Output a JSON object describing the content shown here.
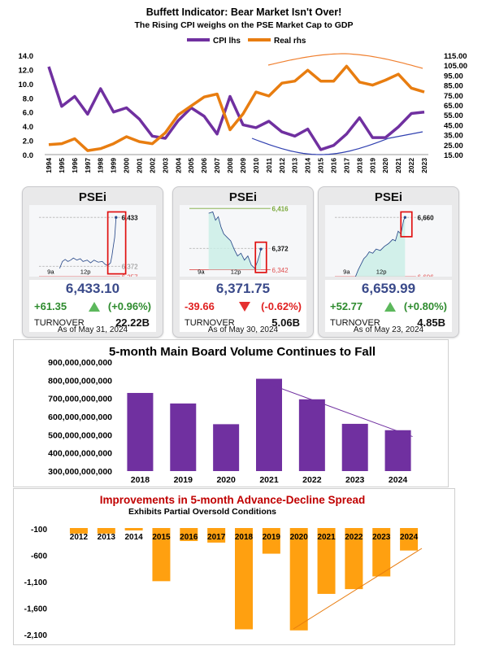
{
  "chart1": {
    "title": "Buffett Indicator: Bear Market Isn't Over!",
    "subtitle": "The Rising CPI weighs on the PSE Market Cap to GDP",
    "legend": [
      "CPI lhs",
      "Real rhs"
    ],
    "left_ticks": [
      "0.0",
      "2.0",
      "4.0",
      "6.0",
      "8.0",
      "10.0",
      "12.0",
      "14.0"
    ],
    "right_ticks": [
      "15.00",
      "25.00",
      "35.00",
      "45.00",
      "55.00",
      "65.00",
      "75.00",
      "85.00",
      "95.00",
      "105.00",
      "115.00"
    ]
  },
  "cards": [
    {
      "title": "PSEi",
      "hi": "6,433",
      "mid": "6,372",
      "lo": "6,357",
      "x1": "9a",
      "x2": "12p",
      "price": "6,433.10",
      "chg": "+61.35",
      "pct": "(+0.96%)",
      "dir": "up",
      "turn_label": "TURNOVER",
      "turn": "22.22B",
      "asof": "As of May 31, 2024"
    },
    {
      "title": "PSEi",
      "hi": "6,416",
      "mid": "6,372",
      "lo": "6,342",
      "x1": "9a",
      "x2": "12p",
      "price": "6,371.75",
      "chg": "-39.66",
      "pct": "(-0.62%)",
      "dir": "down",
      "turn_label": "TURNOVER",
      "turn": "5.06B",
      "asof": "As of May 30, 2024"
    },
    {
      "title": "PSEi",
      "hi": "6,660",
      "mid": "",
      "lo": "6,606",
      "x1": "9a",
      "x2": "12p",
      "price": "6,659.99",
      "chg": "+52.77",
      "pct": "(+0.80%)",
      "dir": "up",
      "turn_label": "TURNOVER",
      "turn": "4.85B",
      "asof": "As of May 23, 2024"
    }
  ],
  "chart3_title": "5-month Main Board Volume Continues to Fall",
  "chart4_title": "Improvements in 5-month Advance-Decline Spread",
  "chart4_subtitle": "Exhibits Partial Oversold Conditions",
  "chart_data": [
    {
      "type": "line",
      "title": "Buffett Indicator: Bear Market Isn't Over!",
      "subtitle": "The Rising CPI weighs on the PSE Market Cap to GDP",
      "x": [
        1994,
        1995,
        1996,
        1997,
        1998,
        1999,
        2000,
        2001,
        2002,
        2003,
        2004,
        2005,
        2006,
        2007,
        2008,
        2009,
        2010,
        2011,
        2012,
        2013,
        2014,
        2015,
        2016,
        2017,
        2018,
        2019,
        2020,
        2021,
        2022,
        2023
      ],
      "series": [
        {
          "name": "CPI lhs",
          "axis": "left",
          "color": "#7030a0",
          "values": [
            12.4,
            6.8,
            8.2,
            5.7,
            9.3,
            6.0,
            6.6,
            5.0,
            2.6,
            2.3,
            4.8,
            6.6,
            5.4,
            2.9,
            8.2,
            4.2,
            3.8,
            4.7,
            3.2,
            2.6,
            3.6,
            0.7,
            1.3,
            2.9,
            5.2,
            2.4,
            2.4,
            3.9,
            5.8,
            6.0
          ]
        },
        {
          "name": "Real rhs",
          "axis": "right",
          "color": "#e87d10",
          "values": [
            25,
            26,
            31,
            19,
            21,
            26,
            33,
            28,
            26,
            37,
            55,
            64,
            73,
            76,
            40,
            56,
            78,
            74,
            87,
            89,
            100,
            89,
            89,
            104,
            88,
            85,
            90,
            96,
            82,
            78
          ]
        }
      ],
      "ylim_left": [
        0,
        14
      ],
      "ylim_right": [
        15,
        115
      ]
    },
    {
      "type": "line",
      "title": "PSEi",
      "x": [
        "9a",
        "12p"
      ],
      "series": [
        {
          "name": "PSEi",
          "values": [
            6372,
            6433.1
          ]
        }
      ],
      "reference_lines": [
        6433,
        6372,
        6357
      ]
    },
    {
      "type": "line",
      "title": "PSEi",
      "x": [
        "9a",
        "12p"
      ],
      "series": [
        {
          "name": "PSEi",
          "values": [
            6416,
            6371.75
          ]
        }
      ],
      "reference_lines": [
        6416,
        6372,
        6342
      ]
    },
    {
      "type": "line",
      "title": "PSEi",
      "x": [
        "9a",
        "12p"
      ],
      "series": [
        {
          "name": "PSEi",
          "values": [
            6606,
            6659.99
          ]
        }
      ],
      "reference_lines": [
        6660,
        6606
      ]
    },
    {
      "type": "bar",
      "title": "5-month Main Board Volume Continues to Fall",
      "categories": [
        "2018",
        "2019",
        "2020",
        "2021",
        "2022",
        "2023",
        "2024"
      ],
      "values": [
        730000000000,
        672000000000,
        558000000000,
        808000000000,
        695000000000,
        560000000000,
        525000000000
      ],
      "ylim": [
        300000000000,
        900000000000
      ],
      "yticks": [
        "300,000,000,000",
        "400,000,000,000",
        "500,000,000,000",
        "600,000,000,000",
        "700,000,000,000",
        "800,000,000,000",
        "900,000,000,000"
      ],
      "color": "#7030a0"
    },
    {
      "type": "bar",
      "title": "Improvements in 5-month Advance-Decline Spread",
      "subtitle": "Exhibits Partial Oversold Conditions",
      "categories": [
        "2012",
        "2013",
        "2014",
        "2015",
        "2016",
        "2017",
        "2018",
        "2019",
        "2020",
        "2021",
        "2022",
        "2023",
        "2024"
      ],
      "values": [
        -190,
        -190,
        -130,
        -1090,
        -330,
        -360,
        -2000,
        -570,
        -2020,
        -1330,
        -1240,
        -1000,
        -510
      ],
      "yticks": [
        "-100",
        "-600",
        "-1,100",
        "-1,600",
        "-2,100"
      ],
      "ylim": [
        -2100,
        -60
      ],
      "color": "#ffa010"
    }
  ]
}
